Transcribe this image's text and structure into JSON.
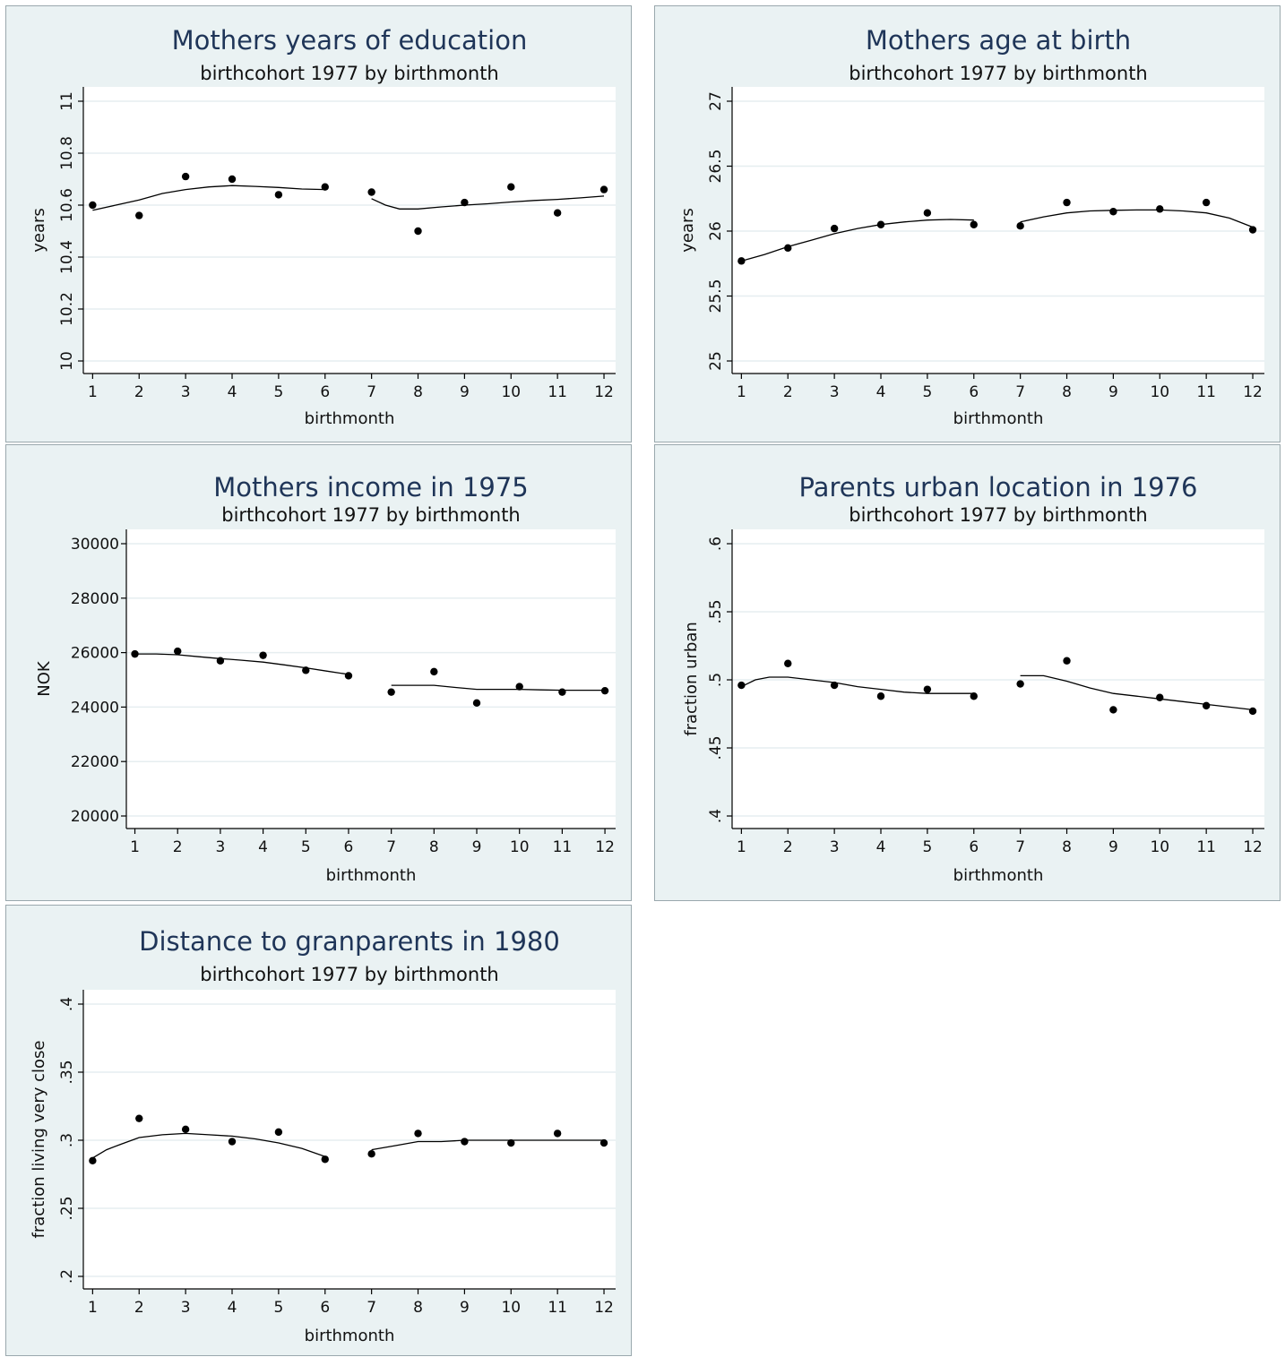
{
  "chart_data": [
    {
      "type": "scatter",
      "title": "Mothers years of education",
      "subtitle": "birthcohort 1977 by birthmonth",
      "xlabel": "birthmonth",
      "ylabel": "years",
      "ylim": [
        10,
        11
      ],
      "yticks": [
        10,
        10.2,
        10.4,
        10.6,
        10.8,
        11
      ],
      "ytick_labels": [
        "10",
        "10.2",
        "10.4",
        "10.6",
        "10.8",
        "11"
      ],
      "ytick_rotated": true,
      "x": [
        1,
        2,
        3,
        4,
        5,
        6,
        7,
        8,
        9,
        10,
        11,
        12
      ],
      "y": [
        10.6,
        10.56,
        10.71,
        10.7,
        10.64,
        10.67,
        10.65,
        10.5,
        10.61,
        10.67,
        10.57,
        10.66
      ],
      "fit_segments": [
        {
          "x": [
            1,
            1.5,
            2,
            2.5,
            3,
            3.5,
            4,
            4.5,
            5,
            5.5,
            6
          ],
          "y": [
            10.58,
            10.6,
            10.62,
            10.645,
            10.66,
            10.67,
            10.675,
            10.672,
            10.668,
            10.662,
            10.66
          ]
        },
        {
          "x": [
            7,
            7.3,
            7.6,
            8,
            8.5,
            9,
            9.5,
            10,
            10.5,
            11,
            11.5,
            12
          ],
          "y": [
            10.625,
            10.6,
            10.585,
            10.585,
            10.593,
            10.6,
            10.605,
            10.612,
            10.618,
            10.622,
            10.628,
            10.635
          ]
        }
      ],
      "grid": true
    },
    {
      "type": "scatter",
      "title": "Mothers age at birth",
      "subtitle": "birthcohort 1977 by birthmonth",
      "xlabel": "birthmonth",
      "ylabel": "years",
      "ylim": [
        25,
        27
      ],
      "yticks": [
        25,
        25.5,
        26,
        26.5,
        27
      ],
      "ytick_labels": [
        "25",
        "25.5",
        "26",
        "26.5",
        "27"
      ],
      "ytick_rotated": true,
      "x": [
        1,
        2,
        3,
        4,
        5,
        6,
        7,
        8,
        9,
        10,
        11,
        12
      ],
      "y": [
        25.77,
        25.87,
        26.02,
        26.05,
        26.14,
        26.05,
        26.04,
        26.22,
        26.15,
        26.17,
        26.22,
        26.01
      ],
      "fit_segments": [
        {
          "x": [
            1,
            1.5,
            2,
            2.5,
            3,
            3.5,
            4,
            4.5,
            5,
            5.5,
            6
          ],
          "y": [
            25.77,
            25.82,
            25.88,
            25.93,
            25.98,
            26.02,
            26.05,
            26.07,
            26.085,
            26.09,
            26.085
          ]
        },
        {
          "x": [
            7,
            7.5,
            8,
            8.5,
            9,
            9.5,
            10,
            10.5,
            11,
            11.5,
            12
          ],
          "y": [
            26.07,
            26.11,
            26.14,
            26.155,
            26.16,
            26.163,
            26.163,
            26.155,
            26.14,
            26.1,
            26.03
          ]
        }
      ],
      "grid": true
    },
    {
      "type": "scatter",
      "title": "Mothers income in 1975",
      "subtitle": "birthcohort 1977 by birthmonth",
      "xlabel": "birthmonth",
      "ylabel": "NOK",
      "ylim": [
        20000,
        30000
      ],
      "yticks": [
        20000,
        22000,
        24000,
        26000,
        28000,
        30000
      ],
      "ytick_labels": [
        "20000",
        "22000",
        "24000",
        "26000",
        "28000",
        "30000"
      ],
      "ytick_rotated": false,
      "x": [
        1,
        2,
        3,
        4,
        5,
        6,
        7,
        8,
        9,
        10,
        11,
        12
      ],
      "y": [
        25950,
        26050,
        25700,
        25900,
        25350,
        25150,
        24550,
        25300,
        24150,
        24750,
        24550,
        24600
      ],
      "fit_segments": [
        {
          "x": [
            1,
            1.5,
            2,
            2.5,
            3,
            3.5,
            4,
            4.5,
            5,
            5.5,
            6
          ],
          "y": [
            25950,
            25950,
            25920,
            25850,
            25780,
            25720,
            25650,
            25550,
            25440,
            25320,
            25200
          ]
        },
        {
          "x": [
            7,
            7.5,
            8,
            8.5,
            9,
            9.5,
            10,
            10.5,
            11,
            11.5,
            12
          ],
          "y": [
            24800,
            24800,
            24800,
            24720,
            24650,
            24650,
            24650,
            24630,
            24620,
            24620,
            24620
          ]
        }
      ],
      "grid": true
    },
    {
      "type": "scatter",
      "title": "Parents urban location in 1976",
      "subtitle": "birthcohort 1977 by birthmonth",
      "xlabel": "birthmonth",
      "ylabel": "fraction urban",
      "ylim": [
        0.4,
        0.6
      ],
      "yticks": [
        0.4,
        0.45,
        0.5,
        0.55,
        0.6
      ],
      "ytick_labels": [
        ".4",
        ".45",
        ".5",
        ".55",
        ".6"
      ],
      "ytick_rotated": true,
      "x": [
        1,
        2,
        3,
        4,
        5,
        6,
        7,
        8,
        9,
        10,
        11,
        12
      ],
      "y": [
        0.496,
        0.512,
        0.496,
        0.488,
        0.493,
        0.488,
        0.497,
        0.514,
        0.478,
        0.487,
        0.481,
        0.477
      ],
      "fit_segments": [
        {
          "x": [
            1,
            1.3,
            1.6,
            2,
            2.5,
            3,
            3.5,
            4,
            4.5,
            5,
            5.5,
            6
          ],
          "y": [
            0.495,
            0.5,
            0.502,
            0.502,
            0.5,
            0.498,
            0.495,
            0.493,
            0.491,
            0.49,
            0.49,
            0.49
          ]
        },
        {
          "x": [
            7,
            7.5,
            8,
            8.5,
            9,
            9.5,
            10,
            10.5,
            11,
            11.5,
            12
          ],
          "y": [
            0.503,
            0.503,
            0.499,
            0.494,
            0.49,
            0.488,
            0.486,
            0.484,
            0.482,
            0.48,
            0.478
          ]
        }
      ],
      "grid": true
    },
    {
      "type": "scatter",
      "title": "Distance to granparents in 1980",
      "subtitle": "birthcohort 1977 by birthmonth",
      "xlabel": "birthmonth",
      "ylabel": "fraction living very close",
      "ylim": [
        0.2,
        0.4
      ],
      "yticks": [
        0.2,
        0.25,
        0.3,
        0.35,
        0.4
      ],
      "ytick_labels": [
        ".2",
        ".25",
        ".3",
        ".35",
        ".4"
      ],
      "ytick_rotated": true,
      "x": [
        1,
        2,
        3,
        4,
        5,
        6,
        7,
        8,
        9,
        10,
        11,
        12
      ],
      "y": [
        0.285,
        0.316,
        0.308,
        0.299,
        0.306,
        0.286,
        0.29,
        0.305,
        0.299,
        0.298,
        0.305,
        0.298
      ],
      "fit_segments": [
        {
          "x": [
            1,
            1.3,
            1.6,
            2,
            2.5,
            3,
            3.5,
            4,
            4.5,
            5,
            5.5,
            6
          ],
          "y": [
            0.287,
            0.293,
            0.297,
            0.302,
            0.304,
            0.305,
            0.304,
            0.303,
            0.301,
            0.298,
            0.294,
            0.288
          ]
        },
        {
          "x": [
            7,
            7.5,
            8,
            8.5,
            9,
            9.5,
            10,
            10.5,
            11,
            11.5,
            12
          ],
          "y": [
            0.293,
            0.296,
            0.299,
            0.299,
            0.3,
            0.3,
            0.3,
            0.3,
            0.3,
            0.3,
            0.3
          ]
        }
      ],
      "grid": true
    }
  ]
}
